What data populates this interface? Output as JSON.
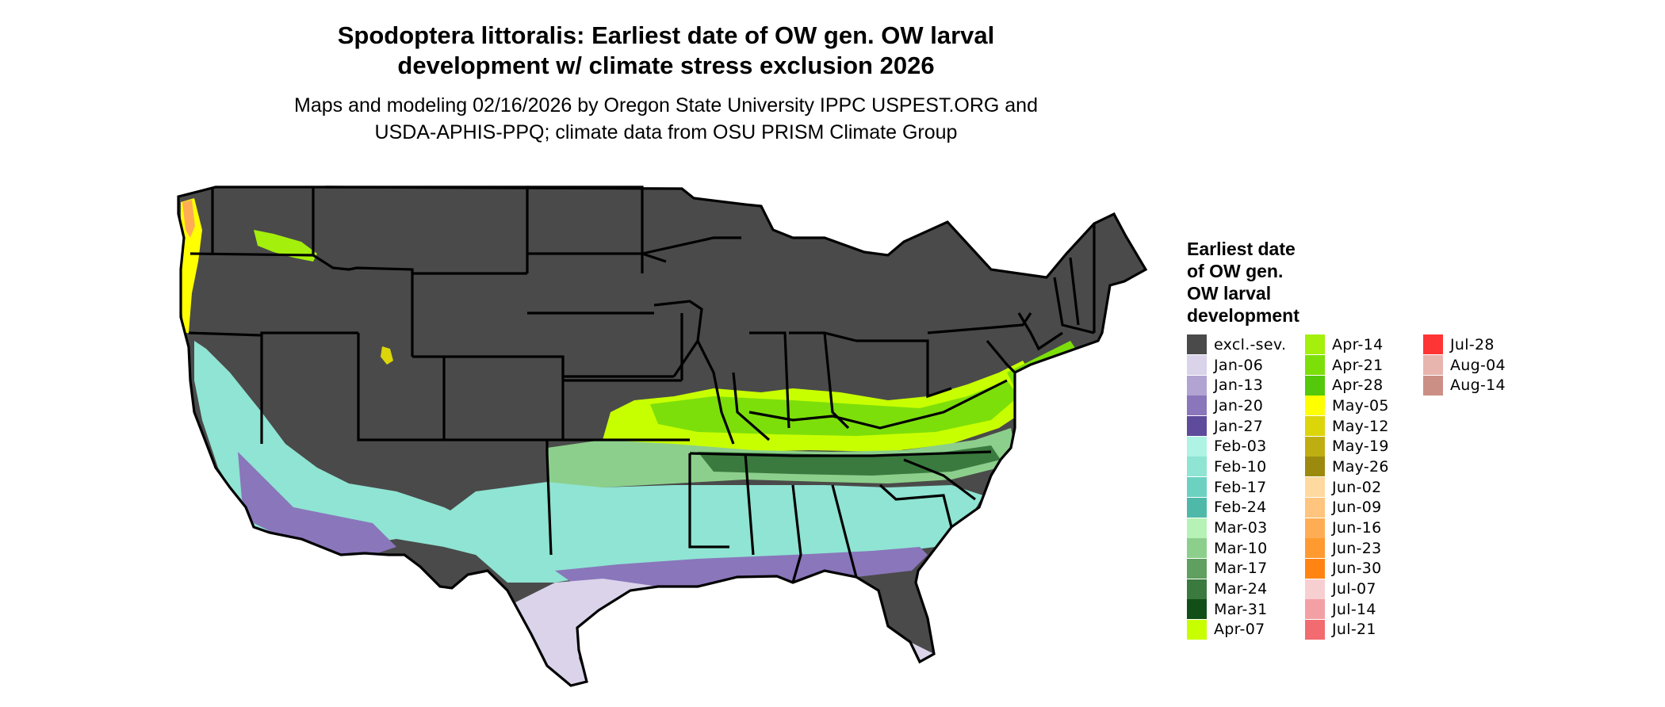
{
  "title": {
    "line1": "Spodoptera littoralis: Earliest date of OW gen. OW larval",
    "line2": "development w/ climate stress exclusion 2026"
  },
  "subtitle": {
    "line1": "Maps and modeling 02/16/2026 by Oregon State University IPPC USPEST.ORG and",
    "line2": "USDA-APHIS-PPQ; climate data from OSU PRISM Climate Group"
  },
  "legend": {
    "title_lines": [
      "Earliest date",
      "of OW gen.",
      "OW larval",
      "development"
    ],
    "columns": [
      [
        {
          "label": "excl.-sev.",
          "color": "#4a4a4a"
        },
        {
          "label": "Jan-06",
          "color": "#dad3ea"
        },
        {
          "label": "Jan-13",
          "color": "#b1a3d2"
        },
        {
          "label": "Jan-20",
          "color": "#8a76bb"
        },
        {
          "label": "Jan-27",
          "color": "#5e4b9b"
        },
        {
          "label": "Feb-03",
          "color": "#aef3e4"
        },
        {
          "label": "Feb-10",
          "color": "#8fe4d3"
        },
        {
          "label": "Feb-17",
          "color": "#6cd1c1"
        },
        {
          "label": "Feb-24",
          "color": "#4fb9a9"
        },
        {
          "label": "Mar-03",
          "color": "#b6f2b6"
        },
        {
          "label": "Mar-10",
          "color": "#8ccf8c"
        },
        {
          "label": "Mar-17",
          "color": "#5f9f5f"
        },
        {
          "label": "Mar-24",
          "color": "#3a7a3e"
        },
        {
          "label": "Mar-31",
          "color": "#114e18"
        },
        {
          "label": "Apr-07",
          "color": "#c8ff00"
        }
      ],
      [
        {
          "label": "Apr-14",
          "color": "#a4ef0c"
        },
        {
          "label": "Apr-21",
          "color": "#7ddf0a"
        },
        {
          "label": "Apr-28",
          "color": "#54c80a"
        },
        {
          "label": "May-05",
          "color": "#ffff00"
        },
        {
          "label": "May-12",
          "color": "#dcd50a"
        },
        {
          "label": "May-19",
          "color": "#bfae12"
        },
        {
          "label": "May-26",
          "color": "#9c8a0f"
        },
        {
          "label": "Jun-02",
          "color": "#ffd9a0"
        },
        {
          "label": "Jun-09",
          "color": "#ffc47d"
        },
        {
          "label": "Jun-16",
          "color": "#ffad55"
        },
        {
          "label": "Jun-23",
          "color": "#ff9a30"
        },
        {
          "label": "Jun-30",
          "color": "#ff8412"
        },
        {
          "label": "Jul-07",
          "color": "#f7cfd1"
        },
        {
          "label": "Jul-14",
          "color": "#f3a0a4"
        },
        {
          "label": "Jul-21",
          "color": "#f26b70"
        }
      ],
      [
        {
          "label": "Jul-28",
          "color": "#ff3434"
        },
        {
          "label": "Aug-04",
          "color": "#e8b4ae"
        },
        {
          "label": "Aug-14",
          "color": "#cc8f86"
        }
      ]
    ]
  },
  "colors": {
    "background": "#ffffff",
    "border": "#000000",
    "ocean_text": "#000000"
  }
}
